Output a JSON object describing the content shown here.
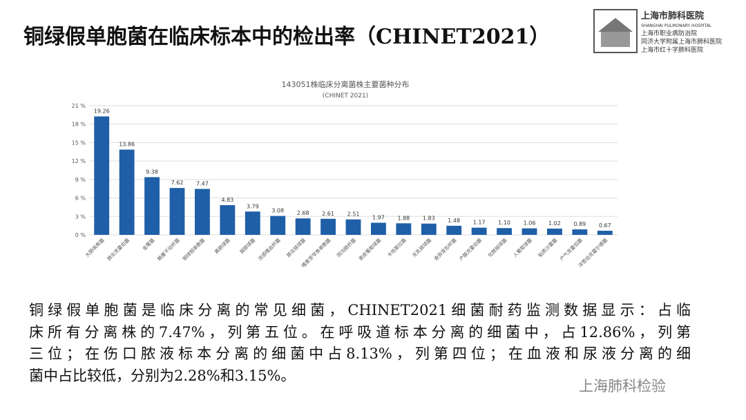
{
  "slide_title": "铜绿假单胞菌在临床标本中的检出率（CHINET2021）",
  "logo": {
    "name": "上海市肺科医院",
    "english": "SHANGHAI PULMONARY HOSPITAL",
    "lines": [
      "上海市职业病防治院",
      "同济大学附属上海市肺科医院",
      "上海市红十字肺科医院"
    ]
  },
  "chart_data": {
    "type": "bar",
    "title": "143051株临床分离菌株主要菌种分布",
    "subtitle": "(CHINET 2021)",
    "categories": [
      "大肠埃希菌",
      "肺炎克雷伯菌",
      "金葡菌",
      "鲍曼不动杆菌",
      "铜绿假单胞菌",
      "粪肠球菌",
      "屎肠球菌",
      "流感嗜血杆菌",
      "肺炎链球菌",
      "嗜麦芽窄食单胞菌",
      "阴沟肠杆菌",
      "表皮葡萄球菌",
      "卡他莫拉菌",
      "无乳链球菌",
      "奇异变形杆菌",
      "产酸克雷伯菌",
      "化脓链球菌",
      "人葡萄球菌",
      "粘质沙雷菌",
      "产气克雷伯菌",
      "洋葱伯克霍尔德菌"
    ],
    "values": [
      19.26,
      13.86,
      9.38,
      7.62,
      7.47,
      4.83,
      3.79,
      3.08,
      2.68,
      2.61,
      2.51,
      1.97,
      1.88,
      1.83,
      1.48,
      1.17,
      1.1,
      1.06,
      1.02,
      0.89,
      0.67
    ],
    "value_labels": [
      "19.26",
      "13.86",
      "9.38",
      "7.62",
      "7.47",
      "4.83",
      "3.79",
      "3.08",
      "2.68",
      "2.61",
      "2.51",
      "1.97",
      "1.88",
      "1.83",
      "1.48",
      "1.17",
      "1.10",
      "1.06",
      "1.02",
      "0.89",
      "0.67"
    ],
    "color": "#1f5fa8",
    "ylim": [
      0,
      21
    ],
    "yticks": [
      {
        "value": 0,
        "label": "0 %"
      },
      {
        "value": 3,
        "label": "3 %"
      },
      {
        "value": 6,
        "label": "6 %"
      },
      {
        "value": 9,
        "label": "9 %"
      },
      {
        "value": 12,
        "label": "12 %"
      },
      {
        "value": 15,
        "label": "15 %"
      },
      {
        "value": 18,
        "label": "18 %"
      },
      {
        "value": 21,
        "label": "21 %"
      }
    ],
    "grid": true
  },
  "paragraph": [
    "铜绿假单胞菌是临床分离的常见细菌，CHINET2021细菌耐药监测数据显示：占临",
    "床所有分离株的7.47%，列第五位。在呼吸道标本分离的细菌中，占12.86%，列第",
    "三位；在伤口脓液标本分离的细菌中占8.13%，列第四位；在血液和尿液分离的细",
    "菌中占比较低，分别为2.28%和3.15%。"
  ],
  "watermark": "上海肺科检验"
}
